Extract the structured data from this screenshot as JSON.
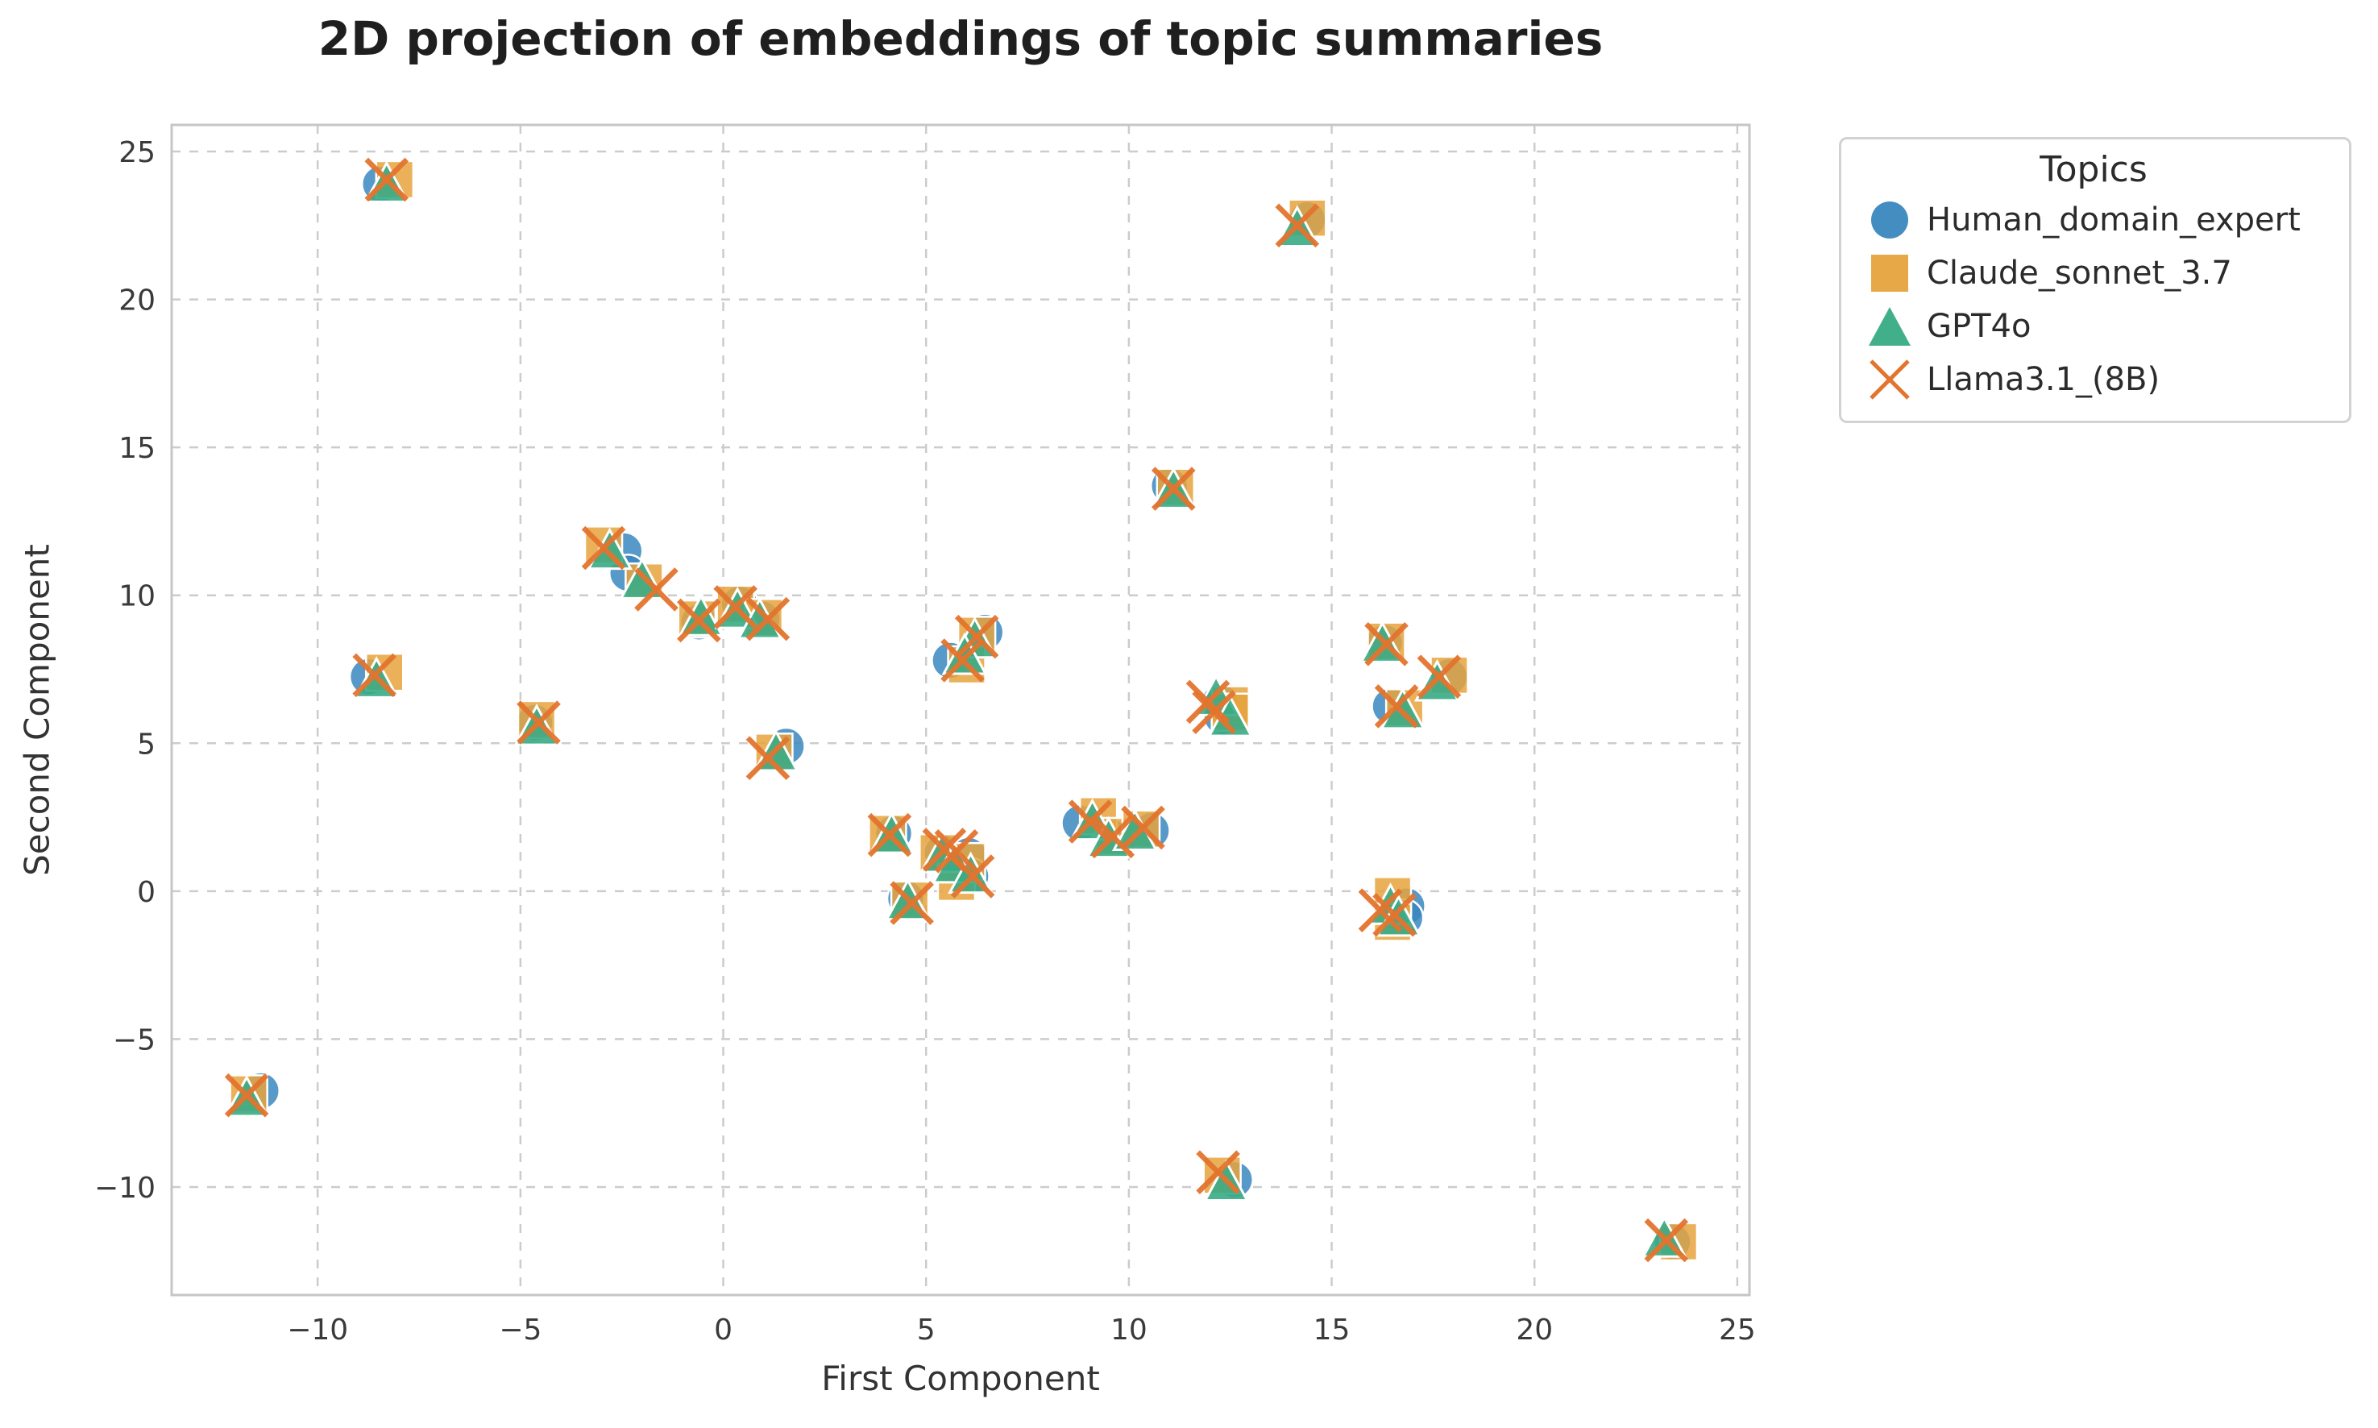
{
  "chart_data": {
    "type": "scatter",
    "title": "2D projection of embeddings of topic summaries",
    "xlabel": "First Component",
    "ylabel": "Second Component",
    "legend_title": "Topics",
    "legend_position": "outside upper right",
    "grid": "dashed",
    "xlim": [
      -13.6,
      25.3
    ],
    "ylim": [
      -13.65,
      25.9
    ],
    "x_ticks": [
      {
        "v": -10,
        "label": "−10"
      },
      {
        "v": -5,
        "label": "−5"
      },
      {
        "v": 0,
        "label": "0"
      },
      {
        "v": 5,
        "label": "5"
      },
      {
        "v": 10,
        "label": "10"
      },
      {
        "v": 15,
        "label": "15"
      },
      {
        "v": 20,
        "label": "20"
      },
      {
        "v": 25,
        "label": "25"
      }
    ],
    "y_ticks": [
      {
        "v": -10,
        "label": "−10"
      },
      {
        "v": -5,
        "label": "−5"
      },
      {
        "v": 0,
        "label": "0"
      },
      {
        "v": 5,
        "label": "5"
      },
      {
        "v": 10,
        "label": "10"
      },
      {
        "v": 15,
        "label": "15"
      },
      {
        "v": 20,
        "label": "20"
      },
      {
        "v": 25,
        "label": "25"
      }
    ],
    "series": [
      {
        "name": "Human_domain_expert",
        "marker": "circle",
        "color": "#3a87be",
        "points": [
          [
            -8.45,
            23.9
          ],
          [
            14.4,
            22.7
          ],
          [
            11.0,
            13.7
          ],
          [
            -2.45,
            11.5
          ],
          [
            -2.35,
            10.75
          ],
          [
            -0.6,
            9.1
          ],
          [
            0.4,
            9.7
          ],
          [
            0.95,
            9.2
          ],
          [
            -8.75,
            7.25
          ],
          [
            -4.65,
            5.7
          ],
          [
            6.45,
            8.75
          ],
          [
            5.6,
            7.8
          ],
          [
            16.3,
            8.4
          ],
          [
            17.9,
            7.25
          ],
          [
            16.45,
            6.25
          ],
          [
            12.25,
            6.4
          ],
          [
            12.3,
            5.9
          ],
          [
            1.55,
            4.9
          ],
          [
            4.2,
            1.95
          ],
          [
            5.4,
            1.3
          ],
          [
            6.05,
            1.2
          ],
          [
            6.1,
            0.5
          ],
          [
            4.5,
            -0.25
          ],
          [
            8.8,
            2.3
          ],
          [
            9.6,
            1.8
          ],
          [
            10.55,
            2.05
          ],
          [
            16.85,
            -0.5
          ],
          [
            16.8,
            -0.9
          ],
          [
            -11.4,
            -6.75
          ],
          [
            12.6,
            -9.75
          ],
          [
            23.4,
            -11.85
          ]
        ]
      },
      {
        "name": "Claude_sonnet_3.7",
        "marker": "square",
        "color": "#e6a33d",
        "points": [
          [
            -8.1,
            24.05
          ],
          [
            14.4,
            22.75
          ],
          [
            11.15,
            13.65
          ],
          [
            -2.95,
            11.7
          ],
          [
            -1.95,
            10.45
          ],
          [
            -0.65,
            9.2
          ],
          [
            0.3,
            9.7
          ],
          [
            1.0,
            9.25
          ],
          [
            -8.35,
            7.4
          ],
          [
            -4.6,
            5.8
          ],
          [
            6.25,
            8.65
          ],
          [
            6.0,
            7.65
          ],
          [
            16.35,
            8.45
          ],
          [
            17.9,
            7.3
          ],
          [
            16.8,
            6.2
          ],
          [
            12.5,
            6.3
          ],
          [
            12.5,
            6.05
          ],
          [
            1.25,
            4.7
          ],
          [
            4.05,
            1.95
          ],
          [
            5.3,
            1.3
          ],
          [
            6.0,
            1.0
          ],
          [
            5.75,
            0.3
          ],
          [
            4.6,
            -0.3
          ],
          [
            9.25,
            2.55
          ],
          [
            9.65,
            1.85
          ],
          [
            10.3,
            2.1
          ],
          [
            16.5,
            -0.15
          ],
          [
            16.5,
            -1.05
          ],
          [
            -11.7,
            -6.85
          ],
          [
            12.3,
            -9.6
          ],
          [
            23.55,
            -11.85
          ]
        ]
      },
      {
        "name": "GPT4o",
        "marker": "triangle",
        "color": "#38ab85",
        "points": [
          [
            -8.3,
            23.9
          ],
          [
            14.15,
            22.4
          ],
          [
            11.1,
            13.55
          ],
          [
            -2.8,
            11.5
          ],
          [
            -2.0,
            10.5
          ],
          [
            -0.55,
            9.25
          ],
          [
            0.35,
            9.5
          ],
          [
            0.9,
            9.15
          ],
          [
            -8.55,
            7.15
          ],
          [
            -4.6,
            5.55
          ],
          [
            6.2,
            8.5
          ],
          [
            5.95,
            7.95
          ],
          [
            16.25,
            8.35
          ],
          [
            17.6,
            7.05
          ],
          [
            16.75,
            6.1
          ],
          [
            12.15,
            6.55
          ],
          [
            12.5,
            5.85
          ],
          [
            1.3,
            4.68
          ],
          [
            4.15,
            1.9
          ],
          [
            5.4,
            1.25
          ],
          [
            5.7,
            0.9
          ],
          [
            6.1,
            0.55
          ],
          [
            4.55,
            -0.35
          ],
          [
            9.1,
            2.35
          ],
          [
            9.5,
            1.75
          ],
          [
            10.15,
            2.0
          ],
          [
            16.45,
            -0.5
          ],
          [
            16.65,
            -0.9
          ],
          [
            -11.75,
            -7.0
          ],
          [
            12.4,
            -9.85
          ],
          [
            23.2,
            -11.75
          ]
        ]
      },
      {
        "name": "Llama3.1_(8B)",
        "marker": "x",
        "color": "#e3742e",
        "points": [
          [
            -8.3,
            24.05
          ],
          [
            14.15,
            22.5
          ],
          [
            11.1,
            13.6
          ],
          [
            -2.95,
            11.6
          ],
          [
            -1.65,
            10.2
          ],
          [
            -0.6,
            9.15
          ],
          [
            0.3,
            9.6
          ],
          [
            1.1,
            9.2
          ],
          [
            -8.6,
            7.3
          ],
          [
            -4.55,
            5.7
          ],
          [
            6.25,
            8.6
          ],
          [
            5.9,
            7.8
          ],
          [
            16.35,
            8.35
          ],
          [
            17.65,
            7.25
          ],
          [
            16.6,
            6.25
          ],
          [
            11.95,
            6.4
          ],
          [
            12.1,
            6.05
          ],
          [
            1.1,
            4.5
          ],
          [
            4.1,
            1.9
          ],
          [
            5.45,
            1.4
          ],
          [
            5.75,
            1.35
          ],
          [
            6.15,
            0.5
          ],
          [
            4.65,
            -0.4
          ],
          [
            9.05,
            2.35
          ],
          [
            9.6,
            1.85
          ],
          [
            10.35,
            2.15
          ],
          [
            16.2,
            -0.65
          ],
          [
            16.55,
            -0.8
          ],
          [
            -11.75,
            -6.9
          ],
          [
            12.2,
            -9.5
          ],
          [
            23.25,
            -11.8
          ]
        ]
      }
    ]
  }
}
